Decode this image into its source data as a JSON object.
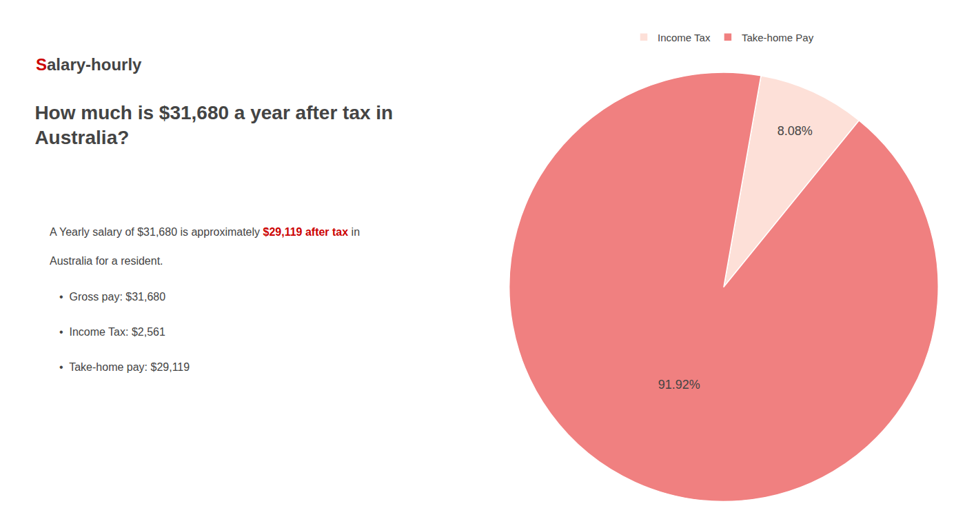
{
  "chart_data": {
    "type": "pie",
    "title": "How much is $31,680 a year after tax in\nAustralia?",
    "categories": [
      "Income Tax",
      "Take-home Pay"
    ],
    "values": [
      8.08,
      91.92
    ],
    "value_labels": [
      "8.08%",
      "91.92%"
    ],
    "colors": [
      "#fde0d8",
      "#f08080"
    ],
    "data_labels": true,
    "legend": "top",
    "annotations": [
      {
        "text": "S",
        "color": "#cc0000"
      },
      {
        "text": "alary-hourly"
      },
      {
        "text": "A Yearly salary of $31,680 is approximately "
      },
      {
        "text": "$29,119 after tax",
        "color": "#cc0000"
      },
      {
        "text": " in"
      },
      {
        "text": "Australia for a resident."
      },
      {
        "text": "•  Gross pay: $31,680"
      },
      {
        "text": "•  Income Tax: $2,561"
      },
      {
        "text": "•  Take-home pay: $29,119"
      }
    ]
  }
}
